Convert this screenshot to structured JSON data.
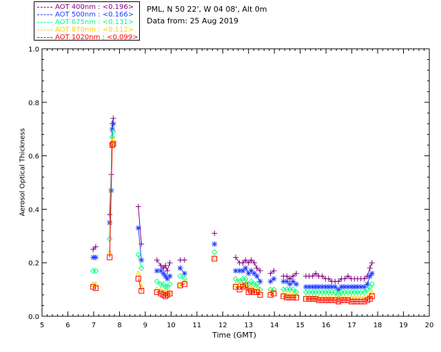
{
  "header": {
    "location": "PML, N 50 22', W 04 08', Alt 0m",
    "date": "Data from: 25 Aug 2019"
  },
  "chart_data": {
    "type": "scatter",
    "xlabel": "Time (GMT)",
    "ylabel": "Aerosol Optical Thickness",
    "xlim": [
      5,
      20
    ],
    "ylim": [
      0.0,
      1.0
    ],
    "xticks": [
      "5",
      "6",
      "7",
      "8",
      "9",
      "10",
      "11",
      "12",
      "13",
      "14",
      "15",
      "16",
      "17",
      "18",
      "19",
      "20"
    ],
    "yticks": [
      "0.0",
      "0.2",
      "0.4",
      "0.6",
      "0.8",
      "1.0"
    ],
    "legend_position": "top-left outside",
    "series": [
      {
        "name": "AOT  400nm : <0.196>",
        "color": "#800080",
        "marker": "plus",
        "points": [
          [
            6.98,
            0.25
          ],
          [
            7.08,
            0.26
          ],
          [
            7.62,
            0.38
          ],
          [
            7.68,
            0.53
          ],
          [
            7.72,
            0.72
          ],
          [
            7.76,
            0.74
          ],
          [
            8.73,
            0.41
          ],
          [
            8.85,
            0.27
          ],
          [
            9.45,
            0.21
          ],
          [
            9.6,
            0.19
          ],
          [
            9.7,
            0.18
          ],
          [
            9.78,
            0.19
          ],
          [
            9.85,
            0.17
          ],
          [
            9.95,
            0.2
          ],
          [
            10.35,
            0.21
          ],
          [
            10.52,
            0.21
          ],
          [
            11.68,
            0.31
          ],
          [
            12.5,
            0.22
          ],
          [
            12.65,
            0.2
          ],
          [
            12.78,
            0.2
          ],
          [
            12.88,
            0.21
          ],
          [
            13.0,
            0.2
          ],
          [
            13.1,
            0.21
          ],
          [
            13.22,
            0.2
          ],
          [
            13.32,
            0.18
          ],
          [
            13.45,
            0.17
          ],
          [
            13.85,
            0.16
          ],
          [
            13.98,
            0.17
          ],
          [
            14.35,
            0.15
          ],
          [
            14.48,
            0.15
          ],
          [
            14.6,
            0.14
          ],
          [
            14.72,
            0.15
          ],
          [
            14.85,
            0.16
          ],
          [
            15.22,
            0.15
          ],
          [
            15.35,
            0.15
          ],
          [
            15.48,
            0.15
          ],
          [
            15.6,
            0.16
          ],
          [
            15.72,
            0.15
          ],
          [
            15.85,
            0.15
          ],
          [
            15.98,
            0.14
          ],
          [
            16.1,
            0.14
          ],
          [
            16.22,
            0.13
          ],
          [
            16.35,
            0.13
          ],
          [
            16.48,
            0.13
          ],
          [
            16.6,
            0.14
          ],
          [
            16.72,
            0.14
          ],
          [
            16.85,
            0.15
          ],
          [
            16.98,
            0.14
          ],
          [
            17.1,
            0.14
          ],
          [
            17.22,
            0.14
          ],
          [
            17.35,
            0.14
          ],
          [
            17.48,
            0.14
          ],
          [
            17.6,
            0.15
          ],
          [
            17.7,
            0.18
          ],
          [
            17.78,
            0.2
          ]
        ]
      },
      {
        "name": "AOT  500nm : <0.166>",
        "color": "#1a3cff",
        "marker": "star",
        "points": [
          [
            6.98,
            0.22
          ],
          [
            7.08,
            0.22
          ],
          [
            7.62,
            0.35
          ],
          [
            7.68,
            0.47
          ],
          [
            7.72,
            0.7
          ],
          [
            7.76,
            0.72
          ],
          [
            8.73,
            0.33
          ],
          [
            8.85,
            0.21
          ],
          [
            9.45,
            0.17
          ],
          [
            9.6,
            0.17
          ],
          [
            9.7,
            0.16
          ],
          [
            9.78,
            0.15
          ],
          [
            9.85,
            0.14
          ],
          [
            9.95,
            0.15
          ],
          [
            10.35,
            0.18
          ],
          [
            10.52,
            0.16
          ],
          [
            11.68,
            0.27
          ],
          [
            12.5,
            0.17
          ],
          [
            12.65,
            0.17
          ],
          [
            12.78,
            0.17
          ],
          [
            12.88,
            0.18
          ],
          [
            13.0,
            0.16
          ],
          [
            13.1,
            0.17
          ],
          [
            13.22,
            0.16
          ],
          [
            13.32,
            0.15
          ],
          [
            13.45,
            0.13
          ],
          [
            13.85,
            0.13
          ],
          [
            13.98,
            0.14
          ],
          [
            14.35,
            0.13
          ],
          [
            14.48,
            0.13
          ],
          [
            14.6,
            0.12
          ],
          [
            14.72,
            0.13
          ],
          [
            14.85,
            0.12
          ],
          [
            15.22,
            0.11
          ],
          [
            15.35,
            0.11
          ],
          [
            15.48,
            0.11
          ],
          [
            15.6,
            0.11
          ],
          [
            15.72,
            0.11
          ],
          [
            15.85,
            0.11
          ],
          [
            15.98,
            0.11
          ],
          [
            16.1,
            0.11
          ],
          [
            16.22,
            0.11
          ],
          [
            16.35,
            0.11
          ],
          [
            16.48,
            0.1
          ],
          [
            16.6,
            0.11
          ],
          [
            16.72,
            0.11
          ],
          [
            16.85,
            0.11
          ],
          [
            16.98,
            0.11
          ],
          [
            17.1,
            0.11
          ],
          [
            17.22,
            0.11
          ],
          [
            17.35,
            0.11
          ],
          [
            17.48,
            0.11
          ],
          [
            17.6,
            0.12
          ],
          [
            17.7,
            0.15
          ],
          [
            17.78,
            0.16
          ]
        ]
      },
      {
        "name": "AOT  675nm : <0.131>",
        "color": "#00ff80",
        "marker": "diamond",
        "points": [
          [
            6.98,
            0.17
          ],
          [
            7.08,
            0.17
          ],
          [
            7.62,
            0.29
          ],
          [
            7.72,
            0.67
          ],
          [
            7.76,
            0.69
          ],
          [
            8.73,
            0.23
          ],
          [
            8.85,
            0.18
          ],
          [
            9.45,
            0.13
          ],
          [
            9.6,
            0.12
          ],
          [
            9.7,
            0.12
          ],
          [
            9.78,
            0.11
          ],
          [
            9.85,
            0.11
          ],
          [
            9.95,
            0.12
          ],
          [
            10.35,
            0.15
          ],
          [
            10.52,
            0.14
          ],
          [
            11.68,
            0.24
          ],
          [
            12.5,
            0.14
          ],
          [
            12.65,
            0.13
          ],
          [
            12.78,
            0.14
          ],
          [
            12.88,
            0.14
          ],
          [
            13.0,
            0.12
          ],
          [
            13.1,
            0.13
          ],
          [
            13.22,
            0.12
          ],
          [
            13.32,
            0.12
          ],
          [
            13.45,
            0.1
          ],
          [
            13.85,
            0.1
          ],
          [
            13.98,
            0.1
          ],
          [
            14.35,
            0.1
          ],
          [
            14.48,
            0.1
          ],
          [
            14.6,
            0.1
          ],
          [
            14.72,
            0.1
          ],
          [
            14.85,
            0.09
          ],
          [
            15.22,
            0.09
          ],
          [
            15.35,
            0.09
          ],
          [
            15.48,
            0.09
          ],
          [
            15.6,
            0.09
          ],
          [
            15.72,
            0.09
          ],
          [
            15.85,
            0.09
          ],
          [
            15.98,
            0.09
          ],
          [
            16.1,
            0.09
          ],
          [
            16.22,
            0.09
          ],
          [
            16.35,
            0.09
          ],
          [
            16.48,
            0.08
          ],
          [
            16.6,
            0.09
          ],
          [
            16.72,
            0.09
          ],
          [
            16.85,
            0.09
          ],
          [
            16.98,
            0.09
          ],
          [
            17.1,
            0.09
          ],
          [
            17.22,
            0.09
          ],
          [
            17.35,
            0.09
          ],
          [
            17.48,
            0.09
          ],
          [
            17.6,
            0.1
          ],
          [
            17.7,
            0.11
          ],
          [
            17.78,
            0.12
          ]
        ]
      },
      {
        "name": "AOT  870nm : <0.112>",
        "color": "#ffcc00",
        "marker": "triangle",
        "points": [
          [
            6.98,
            0.12
          ],
          [
            7.08,
            0.12
          ],
          [
            7.62,
            0.24
          ],
          [
            7.72,
            0.65
          ],
          [
            7.76,
            0.66
          ],
          [
            8.73,
            0.16
          ],
          [
            8.85,
            0.11
          ],
          [
            9.45,
            0.1
          ],
          [
            9.6,
            0.1
          ],
          [
            9.7,
            0.09
          ],
          [
            9.78,
            0.09
          ],
          [
            9.85,
            0.09
          ],
          [
            9.95,
            0.09
          ],
          [
            10.35,
            0.12
          ],
          [
            10.52,
            0.13
          ],
          [
            11.68,
            0.22
          ],
          [
            12.5,
            0.12
          ],
          [
            12.65,
            0.12
          ],
          [
            12.78,
            0.12
          ],
          [
            12.88,
            0.12
          ],
          [
            13.0,
            0.1
          ],
          [
            13.1,
            0.11
          ],
          [
            13.22,
            0.1
          ],
          [
            13.32,
            0.1
          ],
          [
            13.45,
            0.09
          ],
          [
            13.85,
            0.09
          ],
          [
            13.98,
            0.09
          ],
          [
            14.35,
            0.08
          ],
          [
            14.48,
            0.08
          ],
          [
            14.6,
            0.08
          ],
          [
            14.72,
            0.08
          ],
          [
            14.85,
            0.08
          ],
          [
            15.22,
            0.07
          ],
          [
            15.35,
            0.07
          ],
          [
            15.48,
            0.07
          ],
          [
            15.6,
            0.07
          ],
          [
            15.72,
            0.07
          ],
          [
            15.85,
            0.07
          ],
          [
            15.98,
            0.07
          ],
          [
            16.1,
            0.07
          ],
          [
            16.22,
            0.07
          ],
          [
            16.35,
            0.07
          ],
          [
            16.48,
            0.07
          ],
          [
            16.6,
            0.07
          ],
          [
            16.72,
            0.07
          ],
          [
            16.85,
            0.07
          ],
          [
            16.98,
            0.07
          ],
          [
            17.1,
            0.07
          ],
          [
            17.22,
            0.07
          ],
          [
            17.35,
            0.07
          ],
          [
            17.48,
            0.07
          ],
          [
            17.6,
            0.07
          ],
          [
            17.7,
            0.08
          ],
          [
            17.78,
            0.09
          ]
        ]
      },
      {
        "name": "AOT 1020nm : <0.099>",
        "color": "#ff0000",
        "marker": "square",
        "points": [
          [
            6.98,
            0.11
          ],
          [
            7.08,
            0.105
          ],
          [
            7.62,
            0.22
          ],
          [
            7.72,
            0.64
          ],
          [
            7.76,
            0.645
          ],
          [
            8.73,
            0.14
          ],
          [
            8.85,
            0.095
          ],
          [
            9.45,
            0.09
          ],
          [
            9.6,
            0.085
          ],
          [
            9.7,
            0.08
          ],
          [
            9.78,
            0.075
          ],
          [
            9.85,
            0.08
          ],
          [
            9.95,
            0.085
          ],
          [
            10.35,
            0.115
          ],
          [
            10.52,
            0.12
          ],
          [
            11.68,
            0.215
          ],
          [
            12.5,
            0.11
          ],
          [
            12.65,
            0.1
          ],
          [
            12.78,
            0.11
          ],
          [
            12.88,
            0.115
          ],
          [
            13.0,
            0.09
          ],
          [
            13.1,
            0.095
          ],
          [
            13.22,
            0.09
          ],
          [
            13.32,
            0.09
          ],
          [
            13.45,
            0.08
          ],
          [
            13.85,
            0.08
          ],
          [
            13.98,
            0.085
          ],
          [
            14.35,
            0.075
          ],
          [
            14.48,
            0.07
          ],
          [
            14.6,
            0.07
          ],
          [
            14.72,
            0.07
          ],
          [
            14.85,
            0.07
          ],
          [
            15.22,
            0.065
          ],
          [
            15.35,
            0.065
          ],
          [
            15.48,
            0.065
          ],
          [
            15.6,
            0.065
          ],
          [
            15.72,
            0.06
          ],
          [
            15.85,
            0.06
          ],
          [
            15.98,
            0.06
          ],
          [
            16.1,
            0.06
          ],
          [
            16.22,
            0.06
          ],
          [
            16.35,
            0.06
          ],
          [
            16.48,
            0.055
          ],
          [
            16.6,
            0.06
          ],
          [
            16.72,
            0.06
          ],
          [
            16.85,
            0.06
          ],
          [
            16.98,
            0.055
          ],
          [
            17.1,
            0.055
          ],
          [
            17.22,
            0.055
          ],
          [
            17.35,
            0.055
          ],
          [
            17.48,
            0.055
          ],
          [
            17.6,
            0.06
          ],
          [
            17.7,
            0.065
          ],
          [
            17.78,
            0.075
          ]
        ]
      }
    ]
  }
}
